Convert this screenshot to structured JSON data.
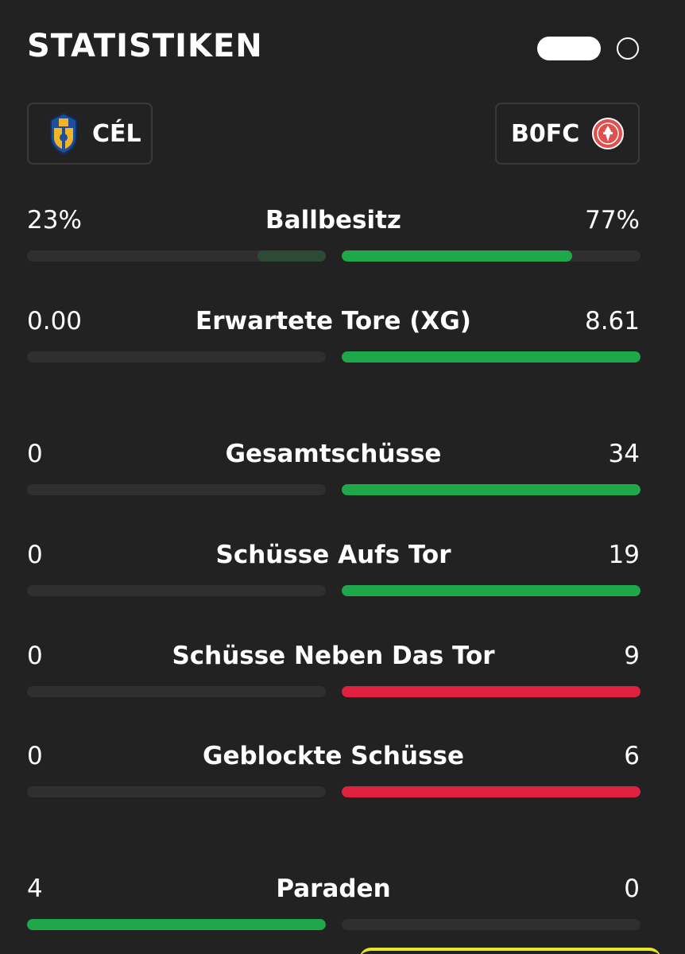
{
  "header": {
    "title": "STATISTIKEN"
  },
  "teams": {
    "home": {
      "abbr": "CÉL",
      "crest_icon": "shield-crest-blue-gold"
    },
    "away": {
      "abbr": "B0FC",
      "crest_icon": "round-crest-red"
    }
  },
  "colors": {
    "background": "#222222",
    "track": "#2f2f2f",
    "green": "#1fa84a",
    "red": "#e0203f",
    "dim_green": "#2d4a38"
  },
  "stats": [
    {
      "label": "Ballbesitz",
      "home": "23%",
      "away": "77%",
      "home_fill": 0.23,
      "away_fill": 0.77,
      "home_color": "dim_green",
      "away_color": "green"
    },
    {
      "label": "Erwartete Tore (XG)",
      "home": "0.00",
      "away": "8.61",
      "home_fill": 0,
      "away_fill": 1,
      "home_color": "green",
      "away_color": "green"
    },
    {
      "label": "Gesamtschüsse",
      "home": "0",
      "away": "34",
      "home_fill": 0,
      "away_fill": 1,
      "home_color": "green",
      "away_color": "green"
    },
    {
      "label": "Schüsse Aufs Tor",
      "home": "0",
      "away": "19",
      "home_fill": 0,
      "away_fill": 1,
      "home_color": "green",
      "away_color": "green"
    },
    {
      "label": "Schüsse Neben Das Tor",
      "home": "0",
      "away": "9",
      "home_fill": 0,
      "away_fill": 1,
      "home_color": "red",
      "away_color": "red"
    },
    {
      "label": "Geblockte Schüsse",
      "home": "0",
      "away": "6",
      "home_fill": 0,
      "away_fill": 1,
      "home_color": "red",
      "away_color": "red"
    },
    {
      "label": "Paraden",
      "home": "4",
      "away": "0",
      "home_fill": 1,
      "away_fill": 0,
      "home_color": "green",
      "away_color": "green"
    }
  ]
}
